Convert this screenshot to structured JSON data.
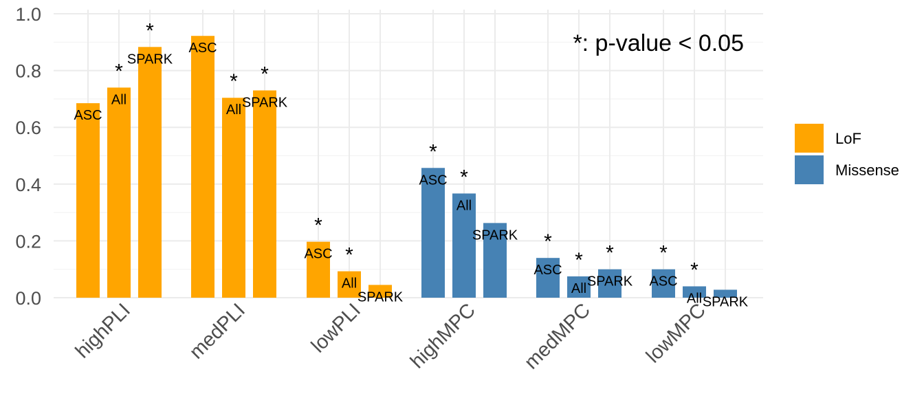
{
  "chart_data": {
    "type": "bar",
    "categories": [
      "highPLI",
      "medPLI",
      "lowPLI",
      "highMPC",
      "medMPC",
      "lowMPC"
    ],
    "ylim": [
      0,
      1.0
    ],
    "yticks": [
      0.0,
      0.2,
      0.4,
      0.6,
      0.8,
      1.0
    ],
    "ytick_labels": [
      "0.0",
      "0.2",
      "0.4",
      "0.6",
      "0.8",
      "1.0"
    ],
    "grid": true,
    "legend_position": "right",
    "annotation": "*: p-value < 0.05",
    "legend": [
      {
        "name": "LoF",
        "color": "#FFA500"
      },
      {
        "name": "Missense",
        "color": "#4682B4"
      }
    ],
    "groups": [
      {
        "category": "highPLI",
        "variant": "LoF",
        "bars": [
          {
            "label": "ASC",
            "value": 0.685,
            "significant": false
          },
          {
            "label": "All",
            "value": 0.74,
            "significant": true
          },
          {
            "label": "SPARK",
            "value": 0.883,
            "significant": true
          }
        ]
      },
      {
        "category": "medPLI",
        "variant": "LoF",
        "bars": [
          {
            "label": "ASC",
            "value": 0.922,
            "significant": false
          },
          {
            "label": "All",
            "value": 0.704,
            "significant": true
          },
          {
            "label": "SPARK",
            "value": 0.73,
            "significant": true
          }
        ]
      },
      {
        "category": "lowPLI",
        "variant": "LoF",
        "bars": [
          {
            "label": "ASC",
            "value": 0.197,
            "significant": true
          },
          {
            "label": "All",
            "value": 0.093,
            "significant": true
          },
          {
            "label": "SPARK",
            "value": 0.045,
            "significant": false
          }
        ]
      },
      {
        "category": "highMPC",
        "variant": "Missense",
        "bars": [
          {
            "label": "ASC",
            "value": 0.457,
            "significant": true
          },
          {
            "label": "All",
            "value": 0.367,
            "significant": true
          },
          {
            "label": "SPARK",
            "value": 0.263,
            "significant": false
          }
        ]
      },
      {
        "category": "medMPC",
        "variant": "Missense",
        "bars": [
          {
            "label": "ASC",
            "value": 0.14,
            "significant": true
          },
          {
            "label": "All",
            "value": 0.075,
            "significant": true
          },
          {
            "label": "SPARK",
            "value": 0.1,
            "significant": true
          }
        ]
      },
      {
        "category": "lowMPC",
        "variant": "Missense",
        "bars": [
          {
            "label": "ASC",
            "value": 0.1,
            "significant": true
          },
          {
            "label": "All",
            "value": 0.04,
            "significant": true
          },
          {
            "label": "SPARK",
            "value": 0.028,
            "significant": false
          }
        ]
      }
    ]
  }
}
